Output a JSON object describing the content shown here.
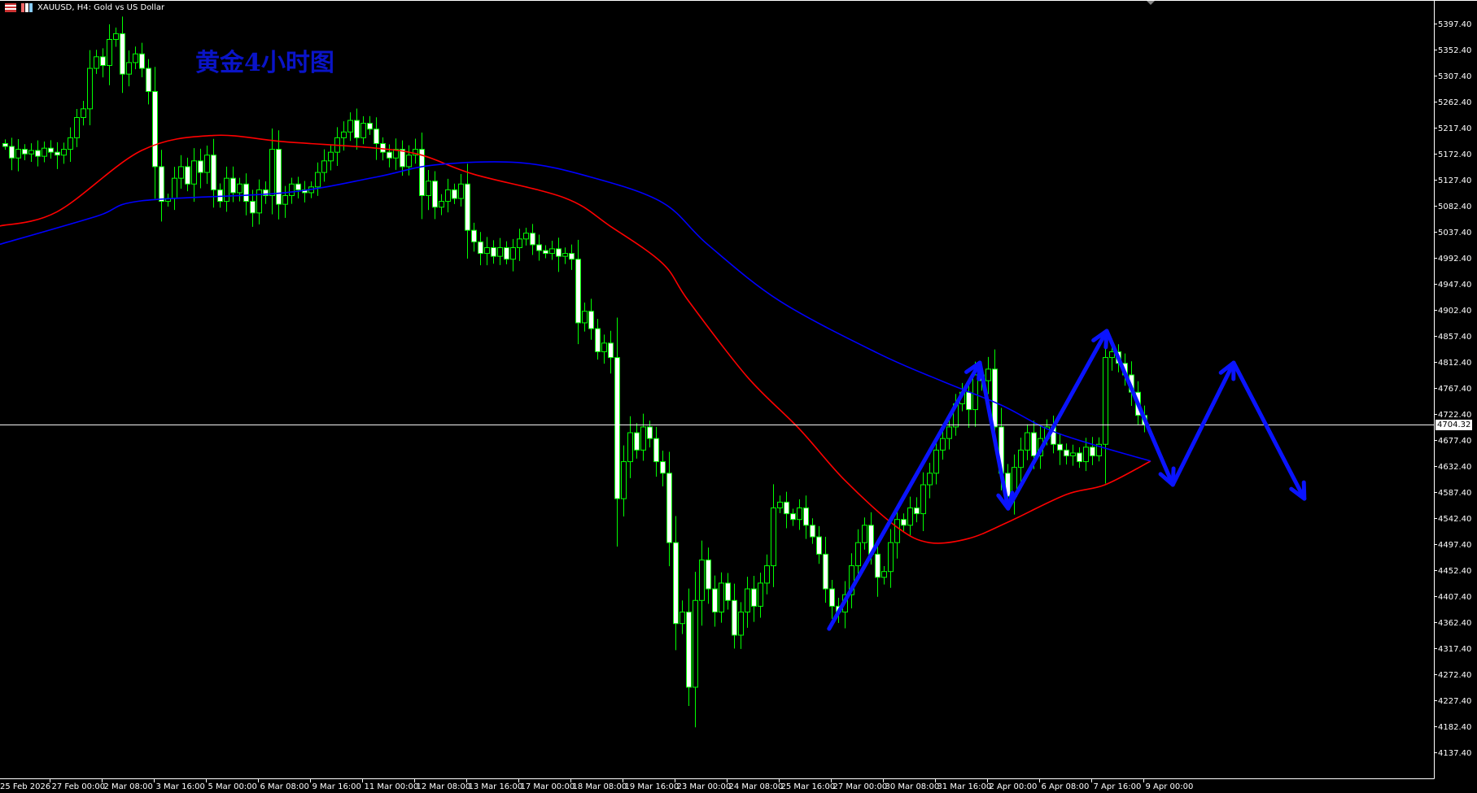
{
  "window": {
    "symbol_title": "XAUUSD, H4:  Gold vs US Dollar",
    "overlay_title": "黄金4小时图",
    "current_price": "4704.32"
  },
  "colors": {
    "background": "#000000",
    "bull_outline": "#00ff00",
    "bear_fill": "#ffffff",
    "ma_fast": "#ff0000",
    "ma_slow": "#0000ff",
    "annotation": "#0a14ff",
    "axis": "#ffffff"
  },
  "chart_data": {
    "type": "candlestick",
    "title": "黄金4小时图",
    "ylim": [
      4137.4,
      5397.4
    ],
    "y_ticks": [
      "5397.40",
      "5352.40",
      "5307.40",
      "5262.40",
      "5217.40",
      "5172.40",
      "5127.40",
      "5082.40",
      "5037.40",
      "4992.40",
      "4947.40",
      "4902.40",
      "4857.40",
      "4812.40",
      "4767.40",
      "4722.40",
      "4677.40",
      "4632.40",
      "4587.40",
      "4542.40",
      "4497.40",
      "4452.40",
      "4407.40",
      "4362.40",
      "4317.40",
      "4272.40",
      "4227.40",
      "4182.40",
      "4137.40"
    ],
    "x_ticks": [
      "25 Feb 2026",
      "27 Feb 00:00",
      "2 Mar 08:00",
      "3 Mar 16:00",
      "5 Mar 00:00",
      "6 Mar 08:00",
      "9 Mar 16:00",
      "11 Mar 00:00",
      "12 Mar 08:00",
      "13 Mar 16:00",
      "17 Mar 00:00",
      "18 Mar 08:00",
      "19 Mar 16:00",
      "23 Mar 00:00",
      "24 Mar 08:00",
      "25 Mar 16:00",
      "27 Mar 00:00",
      "30 Mar 08:00",
      "31 Mar 16:00",
      "2 Apr 00:00",
      "6 Apr 08:00",
      "7 Apr 16:00",
      "9 Apr 00:00"
    ],
    "closes": [
      5185,
      5165,
      5180,
      5172,
      5178,
      5168,
      5182,
      5175,
      5170,
      5180,
      5200,
      5235,
      5250,
      5320,
      5340,
      5325,
      5370,
      5380,
      5310,
      5330,
      5345,
      5320,
      5280,
      5150,
      5090,
      5095,
      5130,
      5150,
      5120,
      5160,
      5140,
      5170,
      5110,
      5090,
      5130,
      5105,
      5120,
      5090,
      5070,
      5110,
      5100,
      5180,
      5085,
      5100,
      5120,
      5110,
      5105,
      5115,
      5140,
      5160,
      5175,
      5200,
      5210,
      5230,
      5200,
      5225,
      5215,
      5190,
      5175,
      5165,
      5180,
      5150,
      5170,
      5180,
      5100,
      5125,
      5080,
      5090,
      5110,
      5095,
      5120,
      5040,
      5020,
      5000,
      5010,
      4995,
      5010,
      4990,
      5010,
      5025,
      5035,
      5015,
      5005,
      5000,
      5008,
      4995,
      5000,
      4990,
      4880,
      4900,
      4870,
      4830,
      4845,
      4820,
      4576,
      4640,
      4690,
      4660,
      4700,
      4680,
      4640,
      4620,
      4500,
      4360,
      4380,
      4250,
      4400,
      4470,
      4420,
      4380,
      4430,
      4400,
      4340,
      4380,
      4420,
      4390,
      4430,
      4460,
      4560,
      4570,
      4550,
      4540,
      4560,
      4530,
      4510,
      4480,
      4420,
      4390,
      4380,
      4410,
      4460,
      4500,
      4530,
      4480,
      4440,
      4450,
      4500,
      4540,
      4530,
      4560,
      4550,
      4600,
      4620,
      4660,
      4680,
      4700,
      4740,
      4760,
      4730,
      4790,
      4780,
      4800,
      4700,
      4620,
      4580,
      4630,
      4660,
      4690,
      4650,
      4680,
      4700,
      4670,
      4660,
      4650,
      4655,
      4640,
      4665,
      4650,
      4670,
      4820,
      4830,
      4810,
      4790,
      4760,
      4720,
      4704.32
    ],
    "series": [
      {
        "color": "#ff0000",
        "points": [
          [
            -1,
            5047
          ],
          [
            8,
            5072
          ],
          [
            21,
            5178
          ],
          [
            32,
            5204
          ],
          [
            43,
            5193
          ],
          [
            57,
            5182
          ],
          [
            64,
            5170
          ],
          [
            72,
            5137
          ],
          [
            86,
            5096
          ],
          [
            93,
            5047
          ],
          [
            101,
            4983
          ],
          [
            105,
            4918
          ],
          [
            114,
            4787
          ],
          [
            122,
            4697
          ],
          [
            129,
            4608
          ],
          [
            137,
            4527
          ],
          [
            142,
            4500
          ],
          [
            148,
            4507
          ],
          [
            154,
            4535
          ],
          [
            163,
            4583
          ],
          [
            169,
            4600
          ],
          [
            176,
            4641
          ]
        ]
      },
      {
        "color": "#0000ff",
        "points": [
          [
            -1,
            5015
          ],
          [
            14,
            5064
          ],
          [
            21,
            5091
          ],
          [
            43,
            5105
          ],
          [
            57,
            5132
          ],
          [
            66,
            5153
          ],
          [
            79,
            5157
          ],
          [
            90,
            5132
          ],
          [
            101,
            5088
          ],
          [
            108,
            5015
          ],
          [
            119,
            4918
          ],
          [
            134,
            4828
          ],
          [
            144,
            4779
          ],
          [
            153,
            4738
          ],
          [
            160,
            4697
          ],
          [
            167,
            4670
          ],
          [
            176,
            4641
          ]
        ]
      }
    ],
    "annotation_arrows": [
      [
        126.6,
        4351
      ],
      [
        149.75,
        4811
      ],
      [
        154.1,
        4559
      ],
      [
        169.25,
        4866
      ],
      [
        179.4,
        4600
      ],
      [
        188.75,
        4811
      ],
      [
        199.6,
        4576
      ]
    ],
    "current_price_line": 4704.32
  }
}
